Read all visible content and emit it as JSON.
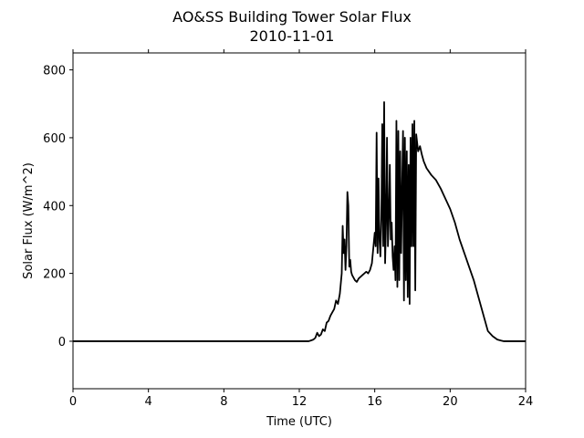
{
  "chart_data": {
    "type": "line",
    "title": "AO&SS Building Tower Solar Flux",
    "subtitle": "2010-11-01",
    "xlabel": "Time (UTC)",
    "ylabel": "Solar Flux (W/m^2)",
    "xlim": [
      0,
      24
    ],
    "ylim": [
      -140,
      850
    ],
    "xticks": [
      0,
      4,
      8,
      12,
      16,
      20,
      24
    ],
    "yticks": [
      0,
      200,
      400,
      600,
      800
    ],
    "xtick_labels": [
      "0",
      "4",
      "8",
      "12",
      "16",
      "20",
      "24"
    ],
    "ytick_labels": [
      "0",
      "200",
      "400",
      "600",
      "800"
    ],
    "grid": false,
    "legend": "none",
    "line_color": "#000000",
    "series": [
      {
        "x": [
          0,
          12.0,
          12.3,
          12.5,
          12.6,
          12.75,
          12.85,
          12.95,
          13.05,
          13.15,
          13.25,
          13.35,
          13.45,
          13.55,
          13.65,
          13.75,
          13.85,
          13.95,
          14.05,
          14.15,
          14.25,
          14.3,
          14.35,
          14.4,
          14.45,
          14.5,
          14.55,
          14.6,
          14.65,
          14.7,
          14.75,
          14.8,
          14.85,
          14.9,
          14.95,
          15.05,
          15.15,
          15.25,
          15.35,
          15.45,
          15.55,
          15.65,
          15.75,
          15.85,
          15.95,
          16.0,
          16.05,
          16.1,
          16.15,
          16.2,
          16.25,
          16.3,
          16.35,
          16.4,
          16.45,
          16.5,
          16.55,
          16.6,
          16.65,
          16.7,
          16.75,
          16.8,
          16.85,
          16.9,
          16.95,
          17.0,
          17.05,
          17.1,
          17.15,
          17.2,
          17.25,
          17.3,
          17.35,
          17.4,
          17.45,
          17.5,
          17.55,
          17.6,
          17.65,
          17.7,
          17.75,
          17.8,
          17.85,
          17.9,
          17.95,
          18.0,
          18.05,
          18.1,
          18.15,
          18.2,
          18.3,
          18.4,
          18.5,
          18.6,
          18.75,
          19.0,
          19.25,
          19.5,
          19.75,
          20.0,
          20.25,
          20.5,
          20.75,
          21.0,
          21.25,
          21.5,
          21.75,
          22.0,
          22.25,
          22.5,
          22.7,
          22.85,
          23.0,
          23.2,
          23.5,
          24.0
        ],
        "y": [
          0,
          0,
          0,
          0,
          2,
          5,
          10,
          25,
          15,
          20,
          35,
          30,
          55,
          60,
          75,
          85,
          95,
          120,
          110,
          140,
          200,
          340,
          260,
          300,
          210,
          280,
          440,
          400,
          220,
          240,
          205,
          195,
          190,
          185,
          180,
          175,
          185,
          190,
          195,
          200,
          205,
          200,
          210,
          230,
          290,
          320,
          280,
          615,
          260,
          480,
          300,
          250,
          360,
          640,
          280,
          705,
          230,
          350,
          600,
          280,
          370,
          520,
          300,
          350,
          250,
          210,
          280,
          180,
          650,
          160,
          620,
          180,
          560,
          260,
          440,
          620,
          120,
          600,
          180,
          560,
          130,
          520,
          110,
          600,
          280,
          640,
          280,
          650,
          150,
          610,
          560,
          575,
          550,
          530,
          510,
          490,
          475,
          450,
          420,
          390,
          350,
          300,
          260,
          220,
          180,
          130,
          80,
          30,
          15,
          5,
          2,
          0,
          0,
          0,
          0,
          0
        ]
      }
    ]
  }
}
